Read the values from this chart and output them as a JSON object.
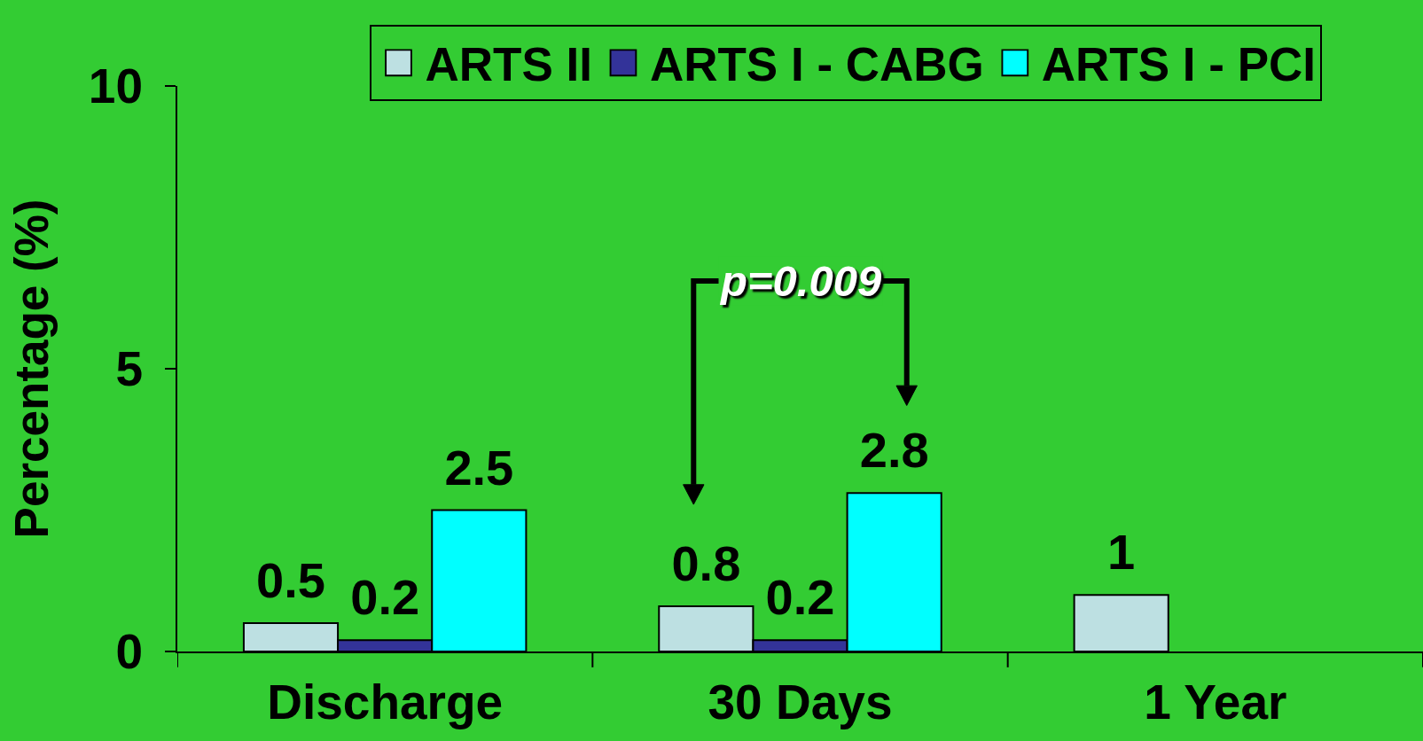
{
  "chart_data": {
    "type": "bar",
    "categories": [
      "Discharge",
      "30 Days",
      "1 Year"
    ],
    "series": [
      {
        "name": "ARTS II",
        "color": "#bde0e2",
        "values": [
          0.5,
          0.8,
          1
        ]
      },
      {
        "name": "ARTS I - CABG",
        "color": "#333399",
        "values": [
          0.2,
          0.2,
          null
        ]
      },
      {
        "name": "ARTS I - PCI",
        "color": "#00ffff",
        "values": [
          2.5,
          2.8,
          null
        ]
      }
    ],
    "ylabel": "Percentage (%)",
    "ylim": [
      0,
      10
    ],
    "yticks": [
      0,
      5,
      10
    ],
    "data_labels": true,
    "legend": "top",
    "annotations": [
      "p=0.009"
    ]
  }
}
